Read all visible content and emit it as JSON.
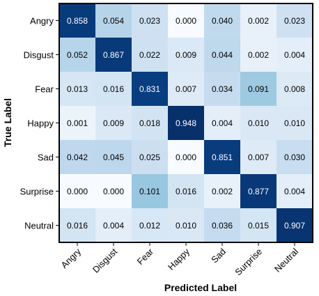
{
  "chart_data": {
    "type": "heatmap",
    "title": "",
    "xlabel": "Predicted Label",
    "ylabel": "True Label",
    "x_categories": [
      "Angry",
      "Disgust",
      "Fear",
      "Happy",
      "Sad",
      "Surprise",
      "Neutral"
    ],
    "y_categories": [
      "Angry",
      "Disgust",
      "Fear",
      "Happy",
      "Sad",
      "Surprise",
      "Neutral"
    ],
    "values": [
      [
        0.858,
        0.054,
        0.023,
        0.0,
        0.04,
        0.002,
        0.023
      ],
      [
        0.052,
        0.867,
        0.022,
        0.009,
        0.044,
        0.002,
        0.004
      ],
      [
        0.013,
        0.016,
        0.831,
        0.007,
        0.034,
        0.091,
        0.008
      ],
      [
        0.001,
        0.009,
        0.018,
        0.948,
        0.004,
        0.01,
        0.01
      ],
      [
        0.042,
        0.045,
        0.025,
        0.0,
        0.851,
        0.007,
        0.03
      ],
      [
        0.0,
        0.0,
        0.101,
        0.016,
        0.002,
        0.877,
        0.004
      ],
      [
        0.016,
        0.004,
        0.012,
        0.01,
        0.036,
        0.015,
        0.907
      ]
    ],
    "value_format": "0.000",
    "colormap": "Blues",
    "grid": false,
    "legend": "none"
  }
}
